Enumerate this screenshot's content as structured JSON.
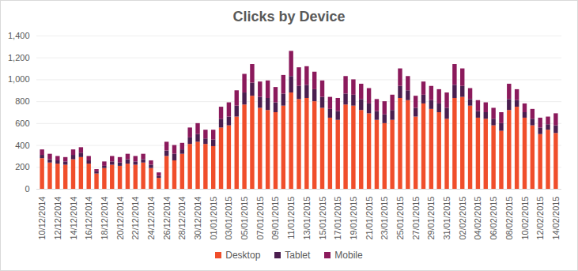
{
  "chart_data": {
    "type": "bar",
    "title": "Clicks by Device",
    "stacked": true,
    "grid": true,
    "legend": "bottom",
    "categories": [
      "10/12/2014",
      null,
      "12/12/2014",
      null,
      "14/12/2014",
      null,
      "16/12/2014",
      null,
      "18/12/2014",
      null,
      "20/12/2014",
      null,
      "22/12/2014",
      null,
      "24/12/2014",
      null,
      "26/12/2014",
      null,
      "28/12/2014",
      null,
      "30/12/2014",
      null,
      "01/01/2015",
      null,
      "03/01/2015",
      null,
      "05/01/2015",
      null,
      "07/01/2015",
      null,
      "09/01/2015",
      null,
      "11/01/2015",
      null,
      "13/01/2015",
      null,
      "15/01/2015",
      null,
      "17/01/2015",
      null,
      "19/01/2015",
      null,
      "21/01/2015",
      null,
      "23/01/2015",
      null,
      "25/01/2015",
      null,
      "27/01/2015",
      null,
      "29/01/2015",
      null,
      "31/01/2015",
      null,
      "02/02/2015",
      null,
      "04/02/2015",
      null,
      "06/02/2015",
      null,
      "08/02/2015",
      null,
      "10/02/2015",
      null,
      "12/02/2015",
      null,
      "14/02/2015"
    ],
    "series": [
      {
        "name": "Desktop",
        "color": "#f04e2b",
        "values": [
          280,
          240,
          230,
          220,
          270,
          290,
          230,
          140,
          190,
          220,
          210,
          230,
          220,
          240,
          190,
          100,
          300,
          260,
          320,
          410,
          430,
          410,
          390,
          560,
          580,
          660,
          770,
          850,
          740,
          720,
          700,
          760,
          880,
          820,
          830,
          800,
          740,
          650,
          630,
          770,
          760,
          720,
          690,
          630,
          600,
          630,
          830,
          810,
          660,
          780,
          730,
          700,
          640,
          830,
          840,
          760,
          650,
          640,
          580,
          530,
          720,
          750,
          650,
          580,
          500,
          540,
          510
        ]
      },
      {
        "name": "Tablet",
        "color": "#4b1e4f",
        "values": [
          30,
          30,
          30,
          30,
          40,
          40,
          30,
          20,
          20,
          30,
          30,
          40,
          30,
          30,
          30,
          20,
          50,
          60,
          40,
          60,
          70,
          50,
          60,
          80,
          80,
          100,
          110,
          120,
          100,
          110,
          90,
          110,
          150,
          120,
          120,
          110,
          100,
          80,
          80,
          100,
          100,
          100,
          90,
          80,
          80,
          90,
          110,
          90,
          80,
          80,
          80,
          80,
          100,
          120,
          100,
          60,
          60,
          60,
          60,
          70,
          100,
          60,
          50,
          60,
          60,
          50,
          70
        ]
      },
      {
        "name": "Mobile",
        "color": "#8b1a5c",
        "values": [
          50,
          50,
          40,
          40,
          50,
          50,
          40,
          20,
          40,
          50,
          50,
          50,
          50,
          50,
          40,
          30,
          80,
          80,
          60,
          90,
          100,
          80,
          90,
          110,
          130,
          140,
          170,
          170,
          140,
          160,
          140,
          170,
          230,
          170,
          170,
          160,
          150,
          110,
          120,
          160,
          140,
          140,
          140,
          110,
          120,
          140,
          160,
          130,
          110,
          120,
          130,
          130,
          140,
          190,
          160,
          100,
          100,
          90,
          100,
          100,
          140,
          100,
          80,
          90,
          90,
          70,
          110
        ]
      }
    ],
    "ylim": [
      0,
      1400
    ],
    "yticks": [
      0,
      200,
      400,
      600,
      800,
      1000,
      1200,
      1400
    ]
  }
}
